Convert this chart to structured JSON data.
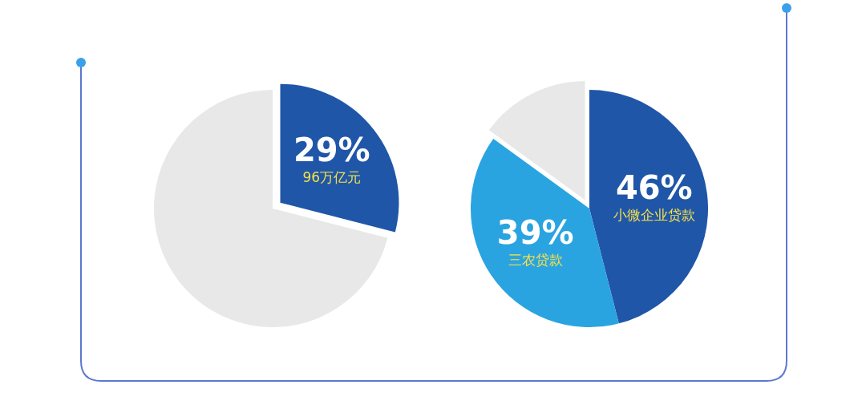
{
  "chart_data": [
    {
      "type": "pie",
      "categories": [
        "96万亿元",
        null
      ],
      "values": [
        29,
        71
      ],
      "colors": [
        "#1f56a8",
        "#e8e8e8"
      ],
      "value_labels": [
        "29%",
        null
      ]
    },
    {
      "type": "pie",
      "categories": [
        "小微企业贷款",
        "三农贷款",
        null
      ],
      "values": [
        46,
        39,
        15
      ],
      "colors": [
        "#1f56a8",
        "#2aa4e0",
        "#e8e8e8"
      ],
      "value_labels": [
        "46%",
        "39%",
        null
      ]
    }
  ]
}
